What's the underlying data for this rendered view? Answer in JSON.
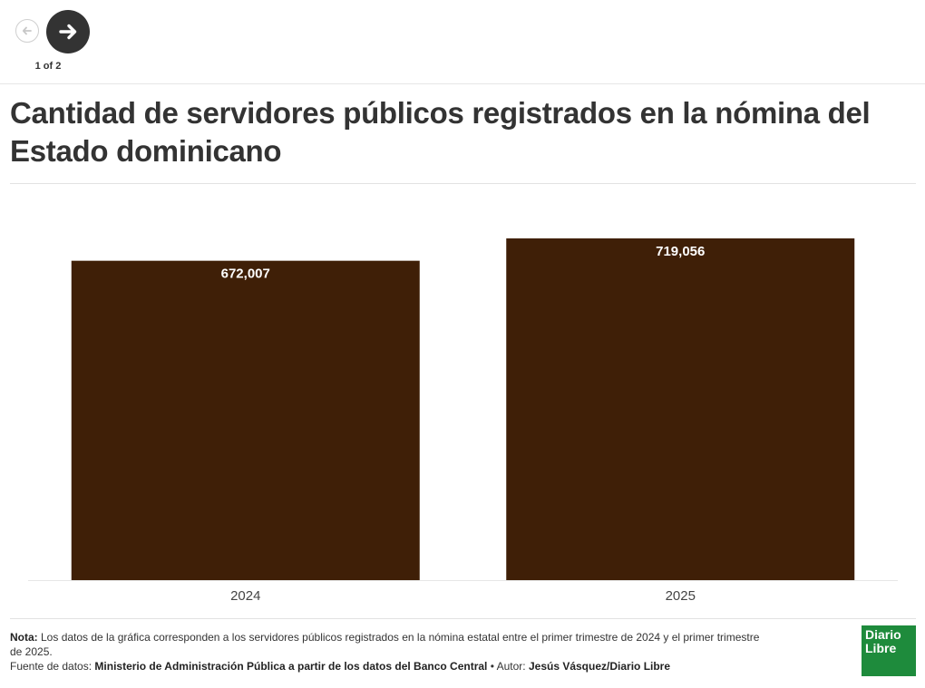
{
  "navigation": {
    "prev_icon": "arrow-left-icon",
    "next_icon": "arrow-right-icon",
    "pager_text": "1 of 2"
  },
  "title": "Cantidad de servidores públicos registrados en la nómina del Estado dominicano",
  "chart_data": {
    "type": "bar",
    "categories": [
      "2024",
      "2025"
    ],
    "values": [
      672007,
      719056
    ],
    "value_labels": [
      "672,007",
      "719,056"
    ],
    "bar_color": "#3f1f07",
    "ylim": [
      0,
      719056
    ],
    "grid": false,
    "legend": "none"
  },
  "footer": {
    "note_label": "Nota:",
    "note_text": " Los datos de la gráfica corresponden a los servidores públicos registrados en la nómina estatal entre el primer trimestre de 2024 y el primer trimestre de 2025.",
    "source_label": "Fuente de datos: ",
    "source_text": "Ministerio de Administración Pública a partir de los datos del Banco Central",
    "separator": " • ",
    "author_label": "Autor: ",
    "author_text": "Jesús Vásquez/Diario Libre"
  },
  "logo": {
    "line1": "Diario",
    "line2": "Libre",
    "color": "#1e8b3c"
  }
}
